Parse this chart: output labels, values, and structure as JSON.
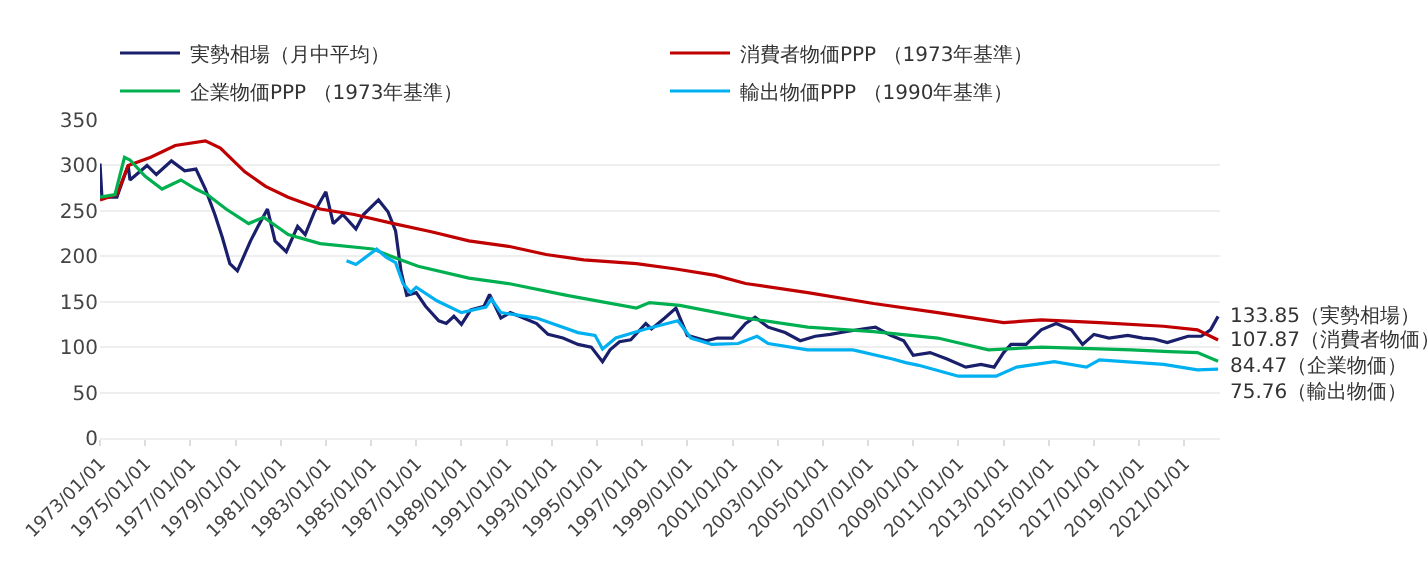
{
  "chart_data": {
    "type": "line",
    "series": [
      {
        "name": "実勢相場（月中平均）",
        "color": "#1a1f6b",
        "x": [
          "1973-01",
          "1973-02",
          "1973-10",
          "1974-04",
          "1974-05",
          "1975-02",
          "1975-07",
          "1976-03",
          "1976-10",
          "1977-04",
          "1977-09",
          "1978-02",
          "1978-06",
          "1978-10",
          "1979-02",
          "1979-09",
          "1980-01",
          "1980-06",
          "1980-10",
          "1981-04",
          "1981-10",
          "1982-02",
          "1982-07",
          "1983-01",
          "1983-05",
          "1983-10",
          "1984-05",
          "1984-09",
          "1985-05",
          "1985-10",
          "1986-02",
          "1986-05",
          "1986-08",
          "1987-01",
          "1987-06",
          "1988-01",
          "1988-05",
          "1988-09",
          "1989-01",
          "1989-06",
          "1990-01",
          "1990-04",
          "1990-10",
          "1991-03",
          "1991-10",
          "1992-05",
          "1992-11",
          "1993-07",
          "1994-03",
          "1994-10",
          "1995-04",
          "1995-08",
          "1996-01",
          "1996-07",
          "1997-03",
          "1997-06",
          "1998-01",
          "1998-07",
          "1999-01",
          "1999-11",
          "2000-05",
          "2001-01",
          "2001-08",
          "2002-01",
          "2002-08",
          "2003-05",
          "2004-01",
          "2004-09",
          "2005-05",
          "2006-01",
          "2006-10",
          "2007-05",
          "2008-01",
          "2008-08",
          "2009-01",
          "2009-10",
          "2010-07",
          "2011-05",
          "2012-01",
          "2012-08",
          "2013-01",
          "2013-05",
          "2014-01",
          "2014-09",
          "2015-05",
          "2016-01",
          "2016-07",
          "2017-01",
          "2017-09",
          "2018-07",
          "2019-03",
          "2019-09",
          "2020-04",
          "2021-03",
          "2021-10",
          "2022-03",
          "2022-07"
        ],
        "values": [
          302,
          265,
          265,
          300,
          284,
          300,
          290,
          305,
          294,
          296,
          274,
          246,
          221,
          192,
          184,
          217,
          233,
          252,
          217,
          205,
          233,
          224,
          249,
          271,
          236,
          246,
          230,
          246,
          262,
          249,
          228,
          183,
          157,
          160,
          145,
          129,
          126,
          134,
          125,
          141,
          145,
          158,
          132,
          138,
          132,
          126,
          114,
          110,
          103,
          100,
          84,
          97,
          106,
          108,
          126,
          120,
          132,
          143,
          113,
          107,
          110,
          110,
          126,
          133,
          122,
          116,
          107,
          112,
          114,
          117,
          120,
          122,
          113,
          107,
          91,
          94,
          87,
          78,
          81,
          78,
          94,
          103,
          103,
          119,
          126,
          119,
          103,
          114,
          110,
          113,
          110,
          109,
          105,
          112,
          112,
          119,
          133.85
        ]
      },
      {
        "name": "消費者物価PPP （1973年基準）",
        "color": "#c00000",
        "x": [
          "1973-01",
          "1973-10",
          "1974-04",
          "1975-04",
          "1976-05",
          "1977-09",
          "1978-05",
          "1979-06",
          "1980-05",
          "1981-05",
          "1982-10",
          "1984-04",
          "1986-01",
          "1987-09",
          "1989-05",
          "1991-02",
          "1992-10",
          "1994-06",
          "1996-10",
          "1998-07",
          "2000-04",
          "2001-08",
          "2004-05",
          "2007-04",
          "2010-02",
          "2013-01",
          "2014-09",
          "2017-04",
          "2020-02",
          "2021-08",
          "2022-07"
        ],
        "values": [
          262,
          268,
          300,
          309,
          322,
          327,
          319,
          293,
          277,
          265,
          252,
          246,
          236,
          227,
          217,
          211,
          202,
          196,
          192,
          186,
          179,
          170,
          160,
          148,
          138,
          127,
          130,
          127,
          123,
          119,
          107.87
        ]
      },
      {
        "name": "企業物価PPP （1973年基準）",
        "color": "#00b050",
        "x": [
          "1973-01",
          "1973-09",
          "1974-02",
          "1974-05",
          "1975-01",
          "1975-10",
          "1976-08",
          "1977-04",
          "1977-10",
          "1978-08",
          "1979-08",
          "1980-04",
          "1981-05",
          "1982-10",
          "1985-02",
          "1986-01",
          "1987-02",
          "1989-05",
          "1991-02",
          "1993-09",
          "1996-10",
          "1997-05",
          "1998-09",
          "2001-08",
          "2004-05",
          "2007-04",
          "2010-02",
          "2012-05",
          "2014-09",
          "2018-09",
          "2020-05",
          "2021-08",
          "2022-07"
        ],
        "values": [
          265,
          268,
          309,
          306,
          288,
          274,
          284,
          274,
          268,
          252,
          236,
          243,
          224,
          214,
          208,
          199,
          189,
          176,
          170,
          157,
          143,
          149,
          146,
          132,
          122,
          117,
          110,
          97,
          100,
          97,
          95,
          94,
          84.47
        ]
      },
      {
        "name": "輸出物価PPP （1990年基準）",
        "color": "#00b0f0",
        "x": [
          "1983-12",
          "1984-05",
          "1985-04",
          "1985-09",
          "1986-02",
          "1986-06",
          "1986-10",
          "1987-01",
          "1987-12",
          "1989-01",
          "1990-02",
          "1990-05",
          "1990-10",
          "1992-05",
          "1994-03",
          "1994-12",
          "1995-04",
          "1995-11",
          "1997-03",
          "1998-08",
          "1999-03",
          "2000-02",
          "2001-04",
          "2002-02",
          "2002-08",
          "2004-05",
          "2006-05",
          "2008-02",
          "2008-09",
          "2009-04",
          "2011-01",
          "2012-09",
          "2013-08",
          "2015-04",
          "2016-09",
          "2017-04",
          "2020-02",
          "2021-08",
          "2022-07"
        ],
        "values": [
          195,
          191,
          208,
          199,
          193,
          170,
          160,
          166,
          151,
          138,
          144,
          153,
          138,
          132,
          116,
          113,
          98,
          110,
          120,
          129,
          110,
          103,
          104,
          112,
          104,
          97,
          97,
          87,
          83,
          80,
          68,
          68,
          78,
          84,
          78,
          86,
          81,
          75,
          75.76
        ]
      }
    ],
    "xlim": [
      "1973-01-01",
      "2022-08-01"
    ],
    "xticks": [
      {
        "value": "1973-01-01",
        "label": "1973/01/01"
      },
      {
        "value": "1975-01-01",
        "label": "1975/01/01"
      },
      {
        "value": "1977-01-01",
        "label": "1977/01/01"
      },
      {
        "value": "1979-01-01",
        "label": "1979/01/01"
      },
      {
        "value": "1981-01-01",
        "label": "1981/01/01"
      },
      {
        "value": "1983-01-01",
        "label": "1983/01/01"
      },
      {
        "value": "1985-01-01",
        "label": "1985/01/01"
      },
      {
        "value": "1987-01-01",
        "label": "1987/01/01"
      },
      {
        "value": "1989-01-01",
        "label": "1989/01/01"
      },
      {
        "value": "1991-01-01",
        "label": "1991/01/01"
      },
      {
        "value": "1993-01-01",
        "label": "1993/01/01"
      },
      {
        "value": "1995-01-01",
        "label": "1995/01/01"
      },
      {
        "value": "1997-01-01",
        "label": "1997/01/01"
      },
      {
        "value": "1999-01-01",
        "label": "1999/01/01"
      },
      {
        "value": "2001-01-01",
        "label": "2001/01/01"
      },
      {
        "value": "2003-01-01",
        "label": "2003/01/01"
      },
      {
        "value": "2005-01-01",
        "label": "2005/01/01"
      },
      {
        "value": "2007-01-01",
        "label": "2007/01/01"
      },
      {
        "value": "2009-01-01",
        "label": "2009/01/01"
      },
      {
        "value": "2011-01-01",
        "label": "2011/01/01"
      },
      {
        "value": "2013-01-01",
        "label": "2013/01/01"
      },
      {
        "value": "2015-01-01",
        "label": "2015/01/01"
      },
      {
        "value": "2017-01-01",
        "label": "2017/01/01"
      },
      {
        "value": "2019-01-01",
        "label": "2019/01/01"
      },
      {
        "value": "2021-01-01",
        "label": "2021/01/01"
      }
    ],
    "ylim": [
      0,
      350
    ],
    "yticks": [
      0,
      50,
      100,
      150,
      200,
      250,
      300,
      350
    ],
    "annotations": [
      {
        "text": "133.85（実勢相場）",
        "x": "2022-07",
        "y": 133.85
      },
      {
        "text": "107.87（消費者物価）",
        "x": "2022-07",
        "y": 107.87
      },
      {
        "text": "84.47（企業物価）",
        "x": "2022-07",
        "y": 84.47
      },
      {
        "text": "75.76（輸出物価）",
        "x": "2022-07",
        "y": 75.76
      }
    ],
    "grid": "y",
    "legend": "top",
    "marker": "none",
    "line_style": "solid"
  }
}
